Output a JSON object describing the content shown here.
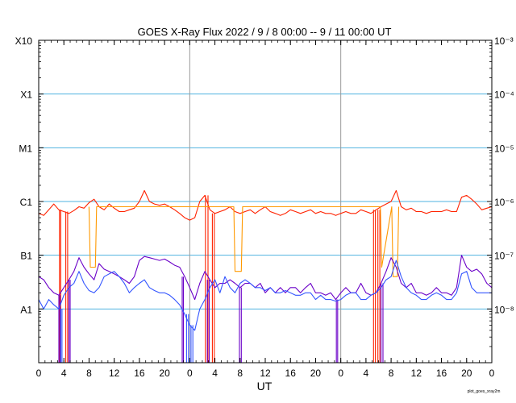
{
  "chart_data": {
    "type": "line",
    "title": "GOES X-Ray Flux   2022 /  9 /  8   00:00  --  9 / 11   00:00   UT",
    "xlabel": "UT",
    "footer_note": "plot_goes_xray2m",
    "x_range_hours": [
      0,
      72
    ],
    "day_boundaries_hours": [
      24,
      48
    ],
    "x_tick_labels": [
      "0",
      "4",
      "8",
      "12",
      "16",
      "20",
      "0",
      "4",
      "8",
      "12",
      "16",
      "20",
      "0",
      "4",
      "8",
      "12",
      "16",
      "20",
      "0"
    ],
    "y_scale": "log",
    "ylim": [
      1e-09,
      0.001
    ],
    "left_axis_labels": [
      {
        "label": "X10",
        "value": 0.001
      },
      {
        "label": "X1",
        "value": 0.0001
      },
      {
        "label": "M1",
        "value": 1e-05
      },
      {
        "label": "C1",
        "value": 1e-06
      },
      {
        "label": "B1",
        "value": 1e-07
      },
      {
        "label": "A1",
        "value": 1e-08
      }
    ],
    "right_axis_labels": [
      {
        "label": "10⁻³",
        "value": 0.001
      },
      {
        "label": "10⁻⁴",
        "value": 0.0001
      },
      {
        "label": "10⁻⁵",
        "value": 1e-05
      },
      {
        "label": "10⁻⁶",
        "value": 1e-06
      },
      {
        "label": "10⁻⁷",
        "value": 1e-07
      },
      {
        "label": "10⁻⁸",
        "value": 1e-08
      }
    ],
    "grid_lines": [
      0.0001,
      1e-05,
      1e-06,
      1e-07,
      1e-08
    ],
    "colors": {
      "grid": "#4fb3e0",
      "day_line": "#999999",
      "long_primary": "#ff2200",
      "long_secondary": "#ff9900",
      "short_primary": "#6a00c8",
      "short_secondary": "#3355ff"
    },
    "series": [
      {
        "key": "long_primary",
        "x": [
          0,
          0.8,
          1.6,
          2.4,
          3.2,
          4.0,
          4.8,
          5.6,
          6.4,
          7.2,
          8.0,
          8.8,
          9.6,
          10.4,
          11.2,
          12.0,
          12.8,
          13.6,
          14.4,
          15.2,
          16.0,
          16.8,
          17.6,
          18.4,
          19.2,
          20.0,
          20.8,
          21.6,
          22.4,
          23.2,
          24.0,
          24.8,
          25.6,
          26.4,
          27.2,
          28.0,
          28.8,
          29.6,
          30.4,
          31.2,
          32.0,
          32.8,
          33.6,
          34.4,
          35.2,
          36.0,
          36.8,
          37.6,
          38.4,
          39.2,
          40.0,
          40.8,
          41.6,
          42.4,
          43.2,
          44.0,
          44.8,
          45.6,
          46.4,
          47.2,
          48.0,
          48.8,
          49.6,
          50.4,
          51.2,
          52.0,
          52.8,
          53.6,
          54.4,
          55.2,
          56.0,
          56.8,
          57.6,
          58.4,
          59.2,
          60.0,
          60.8,
          61.6,
          62.4,
          63.2,
          64.0,
          64.8,
          65.6,
          66.4,
          67.2,
          68.0,
          68.8,
          69.6,
          70.4,
          71.2,
          72.0
        ],
        "y": [
          6e-07,
          5.5e-07,
          7e-07,
          9e-07,
          7e-07,
          6.5e-07,
          6e-07,
          6.8e-07,
          8e-07,
          7.5e-07,
          9.5e-07,
          1.1e-06,
          8e-07,
          7e-07,
          9e-07,
          7.5e-07,
          6.5e-07,
          6.5e-07,
          7e-07,
          7.5e-07,
          1e-06,
          1.6e-06,
          1e-06,
          9e-07,
          8.5e-07,
          9e-07,
          8e-07,
          7e-07,
          6e-07,
          5e-07,
          4.5e-07,
          5e-07,
          1e-06,
          1.3e-06,
          7e-07,
          6e-07,
          6.5e-07,
          7e-07,
          8e-07,
          6.5e-07,
          6e-07,
          6.5e-07,
          7e-07,
          6e-07,
          7e-07,
          8e-07,
          6.5e-07,
          6e-07,
          5.5e-07,
          6e-07,
          7e-07,
          6.5e-07,
          6e-07,
          6.5e-07,
          7e-07,
          6e-07,
          6.5e-07,
          6e-07,
          6e-07,
          5.5e-07,
          6e-07,
          6.5e-07,
          6e-07,
          6e-07,
          7e-07,
          6.5e-07,
          6e-07,
          7e-07,
          8e-07,
          9e-07,
          1e-06,
          1.6e-06,
          8e-07,
          7e-07,
          7.5e-07,
          6.5e-07,
          6.5e-07,
          6e-07,
          6.5e-07,
          6.5e-07,
          6.5e-07,
          7e-07,
          6.5e-07,
          6.5e-07,
          1.2e-06,
          1.3e-06,
          1.1e-06,
          9e-07,
          7e-07,
          7.5e-07,
          8e-07
        ],
        "dropouts": [
          [
            3.3,
            3.5
          ],
          [
            4.3,
            4.6
          ],
          [
            26.5,
            26.9
          ],
          [
            27.6,
            27.9
          ],
          [
            53.2,
            53.5
          ],
          [
            53.9,
            54.2
          ]
        ]
      },
      {
        "key": "long_secondary",
        "x": [
          8.0,
          8.2,
          9.0,
          9.2,
          31.0,
          31.2,
          32.2,
          32.4,
          54.3,
          54.5,
          56.1,
          56.3,
          57.0,
          57.2
        ],
        "y": [
          8e-07,
          6e-08,
          6e-08,
          8e-07,
          8e-07,
          5e-08,
          5e-08,
          8e-07,
          8e-07,
          6e-08,
          8e-07,
          4e-08,
          4e-08,
          8e-07
        ]
      },
      {
        "key": "short_primary",
        "x": [
          0,
          0.8,
          1.6,
          2.4,
          3.2,
          4.0,
          4.8,
          5.6,
          6.4,
          7.2,
          8.0,
          8.8,
          9.6,
          10.4,
          11.2,
          12.0,
          12.8,
          13.6,
          14.4,
          15.2,
          16.0,
          16.8,
          17.6,
          18.4,
          19.2,
          20.0,
          20.8,
          21.6,
          22.4,
          23.2,
          24.0,
          24.8,
          25.6,
          26.4,
          27.2,
          28.0,
          28.8,
          29.6,
          30.4,
          31.2,
          32.0,
          32.8,
          33.6,
          34.4,
          35.2,
          36.0,
          36.8,
          37.6,
          38.4,
          39.2,
          40.0,
          40.8,
          41.6,
          42.4,
          43.2,
          44.0,
          44.8,
          45.6,
          46.4,
          47.2,
          48.0,
          48.8,
          49.6,
          50.4,
          51.2,
          52.0,
          52.8,
          53.6,
          54.4,
          55.2,
          56.0,
          56.8,
          57.6,
          58.4,
          59.2,
          60.0,
          60.8,
          61.6,
          62.4,
          63.2,
          64.0,
          64.8,
          65.6,
          66.4,
          67.2,
          68.0,
          68.8,
          69.6,
          70.4,
          71.2,
          72.0
        ],
        "y": [
          4e-08,
          3.5e-08,
          2.5e-08,
          2e-08,
          1.8e-08,
          2.5e-08,
          3.5e-08,
          5e-08,
          9e-08,
          6e-08,
          4.5e-08,
          3.5e-08,
          7e-08,
          5.5e-08,
          5e-08,
          4.5e-08,
          4e-08,
          3.5e-08,
          3e-08,
          4e-08,
          8e-08,
          9.5e-08,
          9e-08,
          8.5e-08,
          8e-08,
          8.5e-08,
          7.5e-08,
          6.5e-08,
          6e-08,
          4e-08,
          2.5e-08,
          1.5e-08,
          3e-08,
          5e-08,
          3.5e-08,
          2.5e-08,
          3e-08,
          3e-08,
          3.5e-08,
          3e-08,
          2.5e-08,
          3e-08,
          3e-08,
          2.5e-08,
          3e-08,
          2e-08,
          2.5e-08,
          2e-08,
          2.5e-08,
          2e-08,
          2.5e-08,
          2.5e-08,
          2e-08,
          2.5e-08,
          3e-08,
          2e-08,
          2e-08,
          1.8e-08,
          2e-08,
          1.5e-08,
          2e-08,
          2.5e-08,
          2e-08,
          2e-08,
          3e-08,
          2e-08,
          1.8e-08,
          2e-08,
          3e-08,
          5e-08,
          9e-08,
          6e-08,
          3e-08,
          2.5e-08,
          3e-08,
          2e-08,
          2e-08,
          1.8e-08,
          2e-08,
          2.5e-08,
          2e-08,
          2e-08,
          1.8e-08,
          2.5e-08,
          1e-07,
          6e-08,
          5e-08,
          5.5e-08,
          4.5e-08,
          3e-08,
          2.5e-08
        ],
        "dropouts": [
          [
            3.2,
            3.4
          ],
          [
            4.8,
            5.0
          ],
          [
            22.8,
            23.0
          ],
          [
            26.8,
            27.1
          ],
          [
            31.9,
            32.2
          ],
          [
            47.3,
            47.5
          ],
          [
            54.4,
            54.7
          ]
        ]
      },
      {
        "key": "short_secondary",
        "x": [
          0,
          0.8,
          1.6,
          2.4,
          3.2,
          4.0,
          4.8,
          5.6,
          6.4,
          7.2,
          8.0,
          8.8,
          9.6,
          10.4,
          11.2,
          12.0,
          12.8,
          13.6,
          14.4,
          15.2,
          16.0,
          16.8,
          17.6,
          18.4,
          19.2,
          20.0,
          20.8,
          21.6,
          22.4,
          23.2,
          24.0,
          24.8,
          25.6,
          26.4,
          27.2,
          28.0,
          28.8,
          29.6,
          30.4,
          31.2,
          32.0,
          32.8,
          33.6,
          34.4,
          35.2,
          36.0,
          36.8,
          37.6,
          38.4,
          39.2,
          40.0,
          40.8,
          41.6,
          42.4,
          43.2,
          44.0,
          44.8,
          45.6,
          46.4,
          47.2,
          48.0,
          48.8,
          49.6,
          50.4,
          51.2,
          52.0,
          52.8,
          53.6,
          54.4,
          55.2,
          56.0,
          56.8,
          57.6,
          58.4,
          59.2,
          60.0,
          60.8,
          61.6,
          62.4,
          63.2,
          64.0,
          64.8,
          65.6,
          66.4,
          67.2,
          68.0,
          68.8,
          69.6,
          70.4,
          71.2,
          72.0
        ],
        "y": [
          1.5e-08,
          1e-08,
          1.5e-08,
          1.2e-08,
          1e-08,
          1.8e-08,
          2.5e-08,
          3e-08,
          5e-08,
          3e-08,
          2.2e-08,
          2e-08,
          2.5e-08,
          4e-08,
          4.5e-08,
          5e-08,
          4e-08,
          3e-08,
          2e-08,
          2.5e-08,
          3e-08,
          3.5e-08,
          2.5e-08,
          2.2e-08,
          2e-08,
          2e-08,
          1.8e-08,
          1.5e-08,
          1.2e-08,
          8e-09,
          5e-09,
          4e-09,
          1e-08,
          1.5e-08,
          2.5e-08,
          3.5e-08,
          2e-08,
          4e-08,
          2.5e-08,
          2e-08,
          3e-08,
          3.5e-08,
          3e-08,
          2.5e-08,
          2.5e-08,
          2.2e-08,
          2.5e-08,
          2e-08,
          2e-08,
          2.2e-08,
          2e-08,
          1.8e-08,
          1.8e-08,
          2e-08,
          2e-08,
          1.5e-08,
          1.8e-08,
          1.5e-08,
          1.5e-08,
          1.4e-08,
          1.5e-08,
          1.8e-08,
          2e-08,
          2e-08,
          1.5e-08,
          1.5e-08,
          1.8e-08,
          2e-08,
          2.5e-08,
          3.5e-08,
          4e-08,
          8e-08,
          4e-08,
          2.5e-08,
          2e-08,
          1.8e-08,
          1.5e-08,
          1.5e-08,
          1.8e-08,
          2e-08,
          1.8e-08,
          1.5e-08,
          1.5e-08,
          2e-08,
          4.5e-08,
          5e-08,
          2.5e-08,
          2e-08,
          2e-08,
          2e-08,
          2e-08
        ],
        "dropouts": [
          [
            3.5,
            3.7
          ],
          [
            23.5,
            23.8
          ],
          [
            24.2,
            24.5
          ]
        ]
      }
    ]
  }
}
